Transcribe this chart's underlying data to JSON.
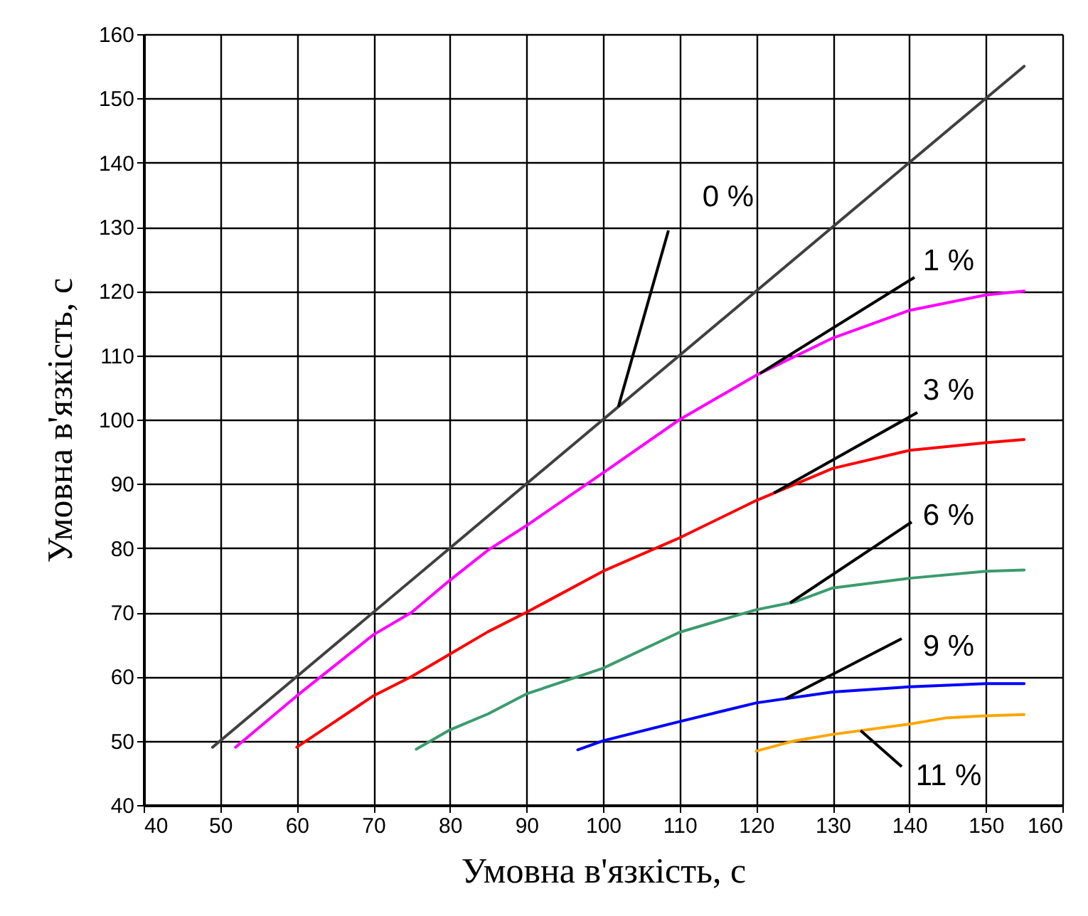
{
  "chart_data": {
    "type": "line",
    "xlabel": "Умовна в'язкість, с",
    "ylabel": "Умовна в'язкість, с",
    "xlim": [
      40,
      160
    ],
    "ylim": [
      40,
      160
    ],
    "xticks": [
      40,
      50,
      60,
      70,
      80,
      90,
      100,
      110,
      120,
      130,
      140,
      150,
      160
    ],
    "yticks": [
      40,
      50,
      60,
      70,
      80,
      90,
      100,
      110,
      120,
      130,
      140,
      150,
      160
    ],
    "grid": true,
    "line_style": "solid",
    "marker": "none",
    "series": [
      {
        "name": "0 %",
        "color": "#404040",
        "x": [
          49,
          155
        ],
        "values": [
          49,
          155
        ]
      },
      {
        "name": "1 %",
        "color": "#ff00ff",
        "x": [
          52,
          60,
          70,
          75,
          80,
          85,
          90,
          100,
          110,
          120,
          130,
          140,
          150,
          155
        ],
        "values": [
          49,
          57,
          66.5,
          70,
          75,
          79.7,
          83.5,
          91.7,
          100,
          106.9,
          112.7,
          117,
          119.4,
          120
        ]
      },
      {
        "name": "3  %",
        "color": "#ff0000",
        "x": [
          60,
          70,
          75,
          80,
          85,
          90,
          100,
          110,
          120,
          130,
          140,
          150,
          155
        ],
        "values": [
          49,
          57,
          60,
          63.5,
          67,
          70,
          76.4,
          81.6,
          87.4,
          92.4,
          95.2,
          96.4,
          96.9
        ]
      },
      {
        "name": "6 %",
        "color": "#3c9b6e",
        "x": [
          75.6,
          80,
          85,
          90,
          100,
          110,
          120,
          125,
          130,
          140,
          150,
          155
        ],
        "values": [
          48.7,
          51.7,
          54.2,
          57.3,
          61.3,
          66.9,
          70.4,
          71.6,
          73.8,
          75.3,
          76.4,
          76.6
        ]
      },
      {
        "name": "9 %",
        "color": "#0000ff",
        "x": [
          96.7,
          100,
          110,
          120,
          130,
          140,
          150,
          155
        ],
        "values": [
          48.6,
          50,
          53,
          55.9,
          57.6,
          58.4,
          58.9,
          58.9
        ]
      },
      {
        "name": "11  %",
        "color": "#ffa500",
        "x": [
          120,
          125,
          130,
          140,
          145,
          150,
          155
        ],
        "values": [
          48.4,
          50,
          51,
          52.6,
          53.6,
          53.9,
          54.1
        ]
      }
    ]
  }
}
